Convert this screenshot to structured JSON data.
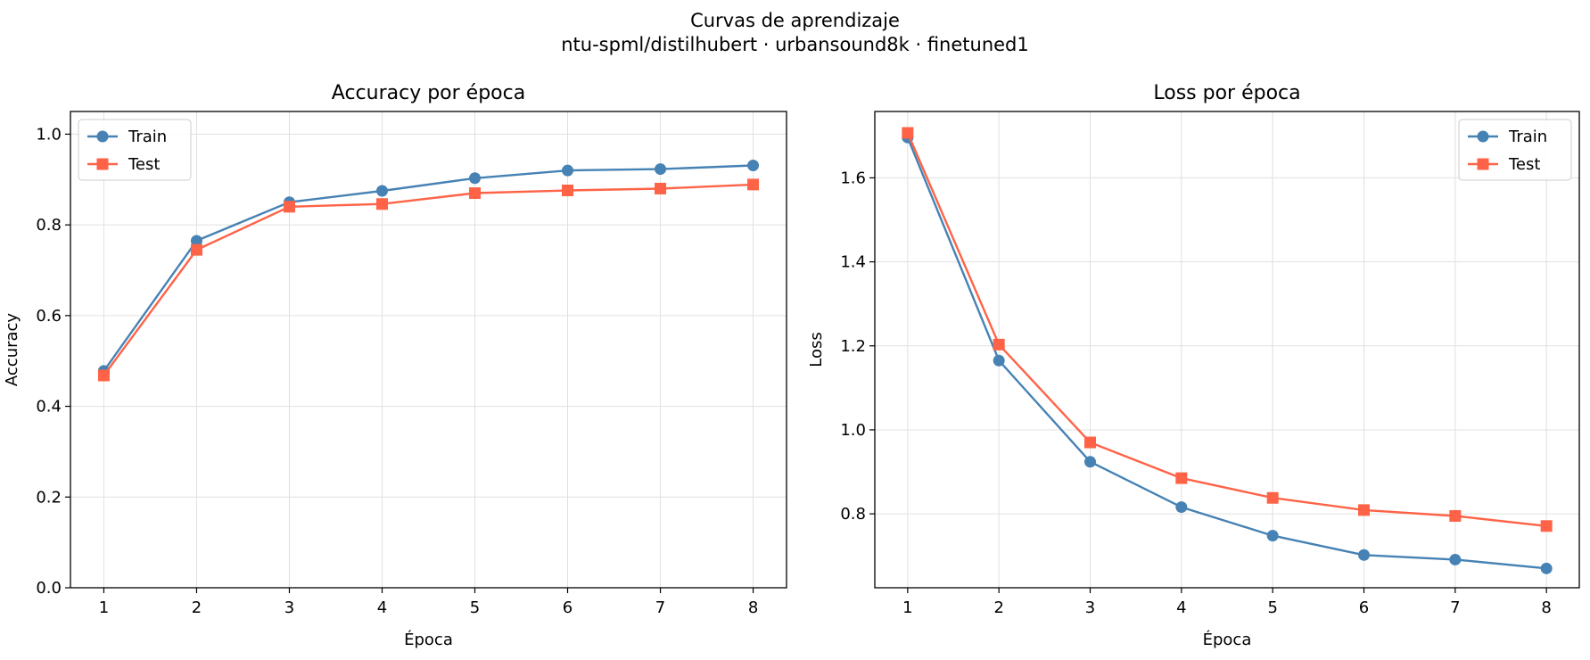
{
  "figure": {
    "title_line1": "Curvas de aprendizaje",
    "title_line2": "ntu-spml/distilhubert  ·  urbansound8k  ·  finetuned1"
  },
  "colors": {
    "train": "#4682b4",
    "test": "#ff6347",
    "grid": "#e0e0e0"
  },
  "chart_data": [
    {
      "type": "line",
      "title": "Accuracy por época",
      "xlabel": "Época",
      "ylabel": "Accuracy",
      "x": [
        1,
        2,
        3,
        4,
        5,
        6,
        7,
        8
      ],
      "xlim": [
        0.64,
        8.36
      ],
      "ylim": [
        0,
        1.05
      ],
      "yticks": [
        0.0,
        0.2,
        0.4,
        0.6,
        0.8,
        1.0
      ],
      "grid": true,
      "legend_position": "upper left",
      "series": [
        {
          "name": "Train",
          "marker": "circle",
          "color": "#4682b4",
          "values": [
            0.478,
            0.765,
            0.85,
            0.875,
            0.903,
            0.92,
            0.923,
            0.931
          ]
        },
        {
          "name": "Test",
          "marker": "square",
          "color": "#ff6347",
          "values": [
            0.468,
            0.745,
            0.84,
            0.846,
            0.87,
            0.876,
            0.88,
            0.889
          ]
        }
      ]
    },
    {
      "type": "line",
      "title": "Loss por época",
      "xlabel": "Época",
      "ylabel": "Loss",
      "x": [
        1,
        2,
        3,
        4,
        5,
        6,
        7,
        8
      ],
      "xlim": [
        0.64,
        8.36
      ],
      "ylim": [
        0.624,
        1.758
      ],
      "yticks": [
        0.8,
        1.0,
        1.2,
        1.4,
        1.6
      ],
      "grid": true,
      "legend_position": "upper right",
      "series": [
        {
          "name": "Train",
          "marker": "circle",
          "color": "#4682b4",
          "values": [
            1.696,
            1.165,
            0.924,
            0.816,
            0.748,
            0.702,
            0.691,
            0.67
          ]
        },
        {
          "name": "Test",
          "marker": "square",
          "color": "#ff6347",
          "values": [
            1.707,
            1.203,
            0.97,
            0.885,
            0.838,
            0.809,
            0.795,
            0.771
          ]
        }
      ]
    }
  ]
}
